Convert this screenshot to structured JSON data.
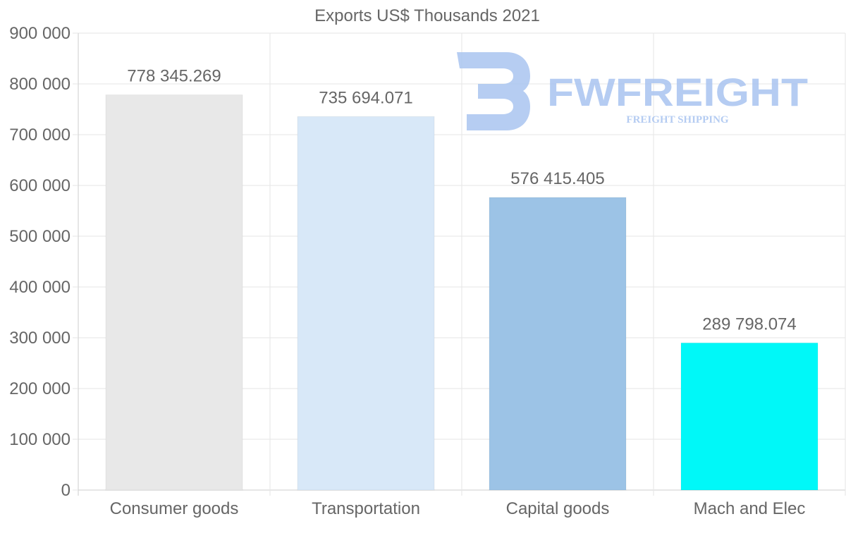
{
  "chart_data": {
    "type": "bar",
    "title": "Exports US$ Thousands 2021",
    "xlabel": "",
    "ylabel": "",
    "ylim": [
      0,
      900000
    ],
    "yticks": [
      0,
      100000,
      200000,
      300000,
      400000,
      500000,
      600000,
      700000,
      800000,
      900000
    ],
    "ytick_labels": [
      "0",
      "100 000",
      "200 000",
      "300 000",
      "400 000",
      "500 000",
      "600 000",
      "700 000",
      "800 000",
      "900 000"
    ],
    "categories": [
      "Consumer goods",
      "Transportation",
      "Capital goods",
      "Mach and Elec"
    ],
    "values": [
      778345.269,
      735694.071,
      576415.405,
      289798.074
    ],
    "value_labels": [
      "778 345.269",
      "735 694.071",
      "576 415.405",
      "289 798.074"
    ],
    "colors": [
      "#e8e8e8",
      "#d8e8f8",
      "#9cc3e6",
      "#00f8f8"
    ],
    "grid": true,
    "legend": "none"
  },
  "watermark": {
    "brand": "FWFREIGHT",
    "tagline": "FREIGHT SHIPPING",
    "color": "#a9c4f0"
  }
}
